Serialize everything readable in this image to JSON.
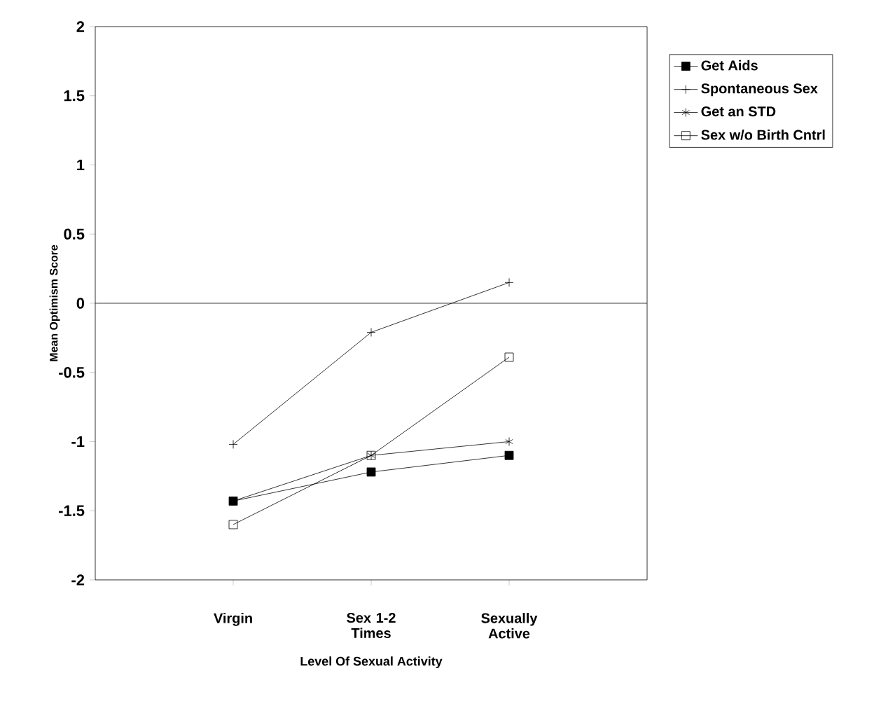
{
  "chart_data": {
    "type": "line",
    "xlabel": "Level Of Sexual Activity",
    "ylabel": "Mean Optimism Score",
    "categories": [
      "Virgin",
      "Sex 1-2 Times",
      "Sexually Active"
    ],
    "series": [
      {
        "name": "Get Aids",
        "color": "#000000",
        "marker": "square",
        "values": [
          -1.43,
          -1.22,
          -1.1
        ]
      },
      {
        "name": "Spontaneous Sex",
        "color": "#000000",
        "marker": "cross",
        "values": [
          -1.02,
          -0.21,
          0.15
        ]
      },
      {
        "name": "Get an STD",
        "color": "#000000",
        "marker": "cross",
        "values": [
          -1.43,
          -1.1,
          -1.0
        ]
      },
      {
        "name": "Sex w/o Birth Cntrl",
        "color": "#000000",
        "marker": "square",
        "values": [
          -1.6,
          -1.1,
          -0.39
        ]
      }
    ],
    "ylim": [
      -2,
      2
    ],
    "yticks": [
      -2,
      -1.5,
      -1,
      -0.5,
      0,
      0.5,
      1,
      1.5,
      2
    ],
    "ref_lines": [
      {
        "axis": "y",
        "value": 0
      }
    ],
    "legend": "top right",
    "grid": false,
    "line_style": "solid"
  }
}
